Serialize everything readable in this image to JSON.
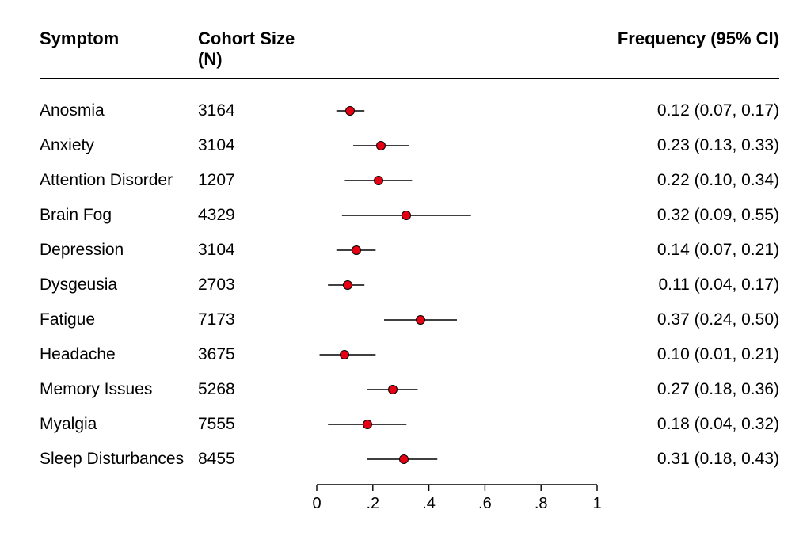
{
  "headers": {
    "symptom": "Symptom",
    "cohort": "Cohort Size (N)",
    "frequency": "Frequency (95% CI)"
  },
  "chart": {
    "type": "forest",
    "xlim": [
      0,
      1
    ],
    "ticks": [
      0,
      0.2,
      0.4,
      0.6,
      0.8,
      1
    ],
    "tick_labels": [
      "0",
      ".2",
      ".4",
      ".6",
      ".8",
      "1"
    ],
    "marker": {
      "shape": "circle",
      "radius": 6,
      "fill": "#e60013",
      "stroke": "#000000",
      "stroke_width": 0.6
    },
    "line": {
      "color": "#000000",
      "width": 1.4
    },
    "axis": {
      "color": "#000000",
      "width": 1.4,
      "tick_length": 8,
      "label_fontsize": 20
    },
    "background": "#ffffff",
    "font": {
      "header_size": 22,
      "header_weight": 700,
      "row_size": 21,
      "family": "Arial"
    }
  },
  "rows": [
    {
      "symptom": "Anosmia",
      "n": "3164",
      "est": 0.12,
      "lo": 0.07,
      "hi": 0.17,
      "freq": "0.12 (0.07, 0.17)"
    },
    {
      "symptom": "Anxiety",
      "n": "3104",
      "est": 0.23,
      "lo": 0.13,
      "hi": 0.33,
      "freq": "0.23 (0.13, 0.33)"
    },
    {
      "symptom": "Attention Disorder",
      "n": "1207",
      "est": 0.22,
      "lo": 0.1,
      "hi": 0.34,
      "freq": "0.22 (0.10, 0.34)"
    },
    {
      "symptom": "Brain Fog",
      "n": "4329",
      "est": 0.32,
      "lo": 0.09,
      "hi": 0.55,
      "freq": "0.32 (0.09, 0.55)"
    },
    {
      "symptom": "Depression",
      "n": "3104",
      "est": 0.14,
      "lo": 0.07,
      "hi": 0.21,
      "freq": "0.14 (0.07, 0.21)"
    },
    {
      "symptom": "Dysgeusia",
      "n": "2703",
      "est": 0.11,
      "lo": 0.04,
      "hi": 0.17,
      "freq": "0.11 (0.04, 0.17)"
    },
    {
      "symptom": "Fatigue",
      "n": "7173",
      "est": 0.37,
      "lo": 0.24,
      "hi": 0.5,
      "freq": "0.37 (0.24, 0.50)"
    },
    {
      "symptom": "Headache",
      "n": "3675",
      "est": 0.1,
      "lo": 0.01,
      "hi": 0.21,
      "freq": "0.10 (0.01, 0.21)"
    },
    {
      "symptom": "Memory Issues",
      "n": "5268",
      "est": 0.27,
      "lo": 0.18,
      "hi": 0.36,
      "freq": "0.27 (0.18, 0.36)"
    },
    {
      "symptom": "Myalgia",
      "n": "7555",
      "est": 0.18,
      "lo": 0.04,
      "hi": 0.32,
      "freq": "0.18 (0.04, 0.32)"
    },
    {
      "symptom": "Sleep Disturbances",
      "n": "8455",
      "est": 0.31,
      "lo": 0.18,
      "hi": 0.43,
      "freq": "0.31 (0.18, 0.43)"
    }
  ]
}
